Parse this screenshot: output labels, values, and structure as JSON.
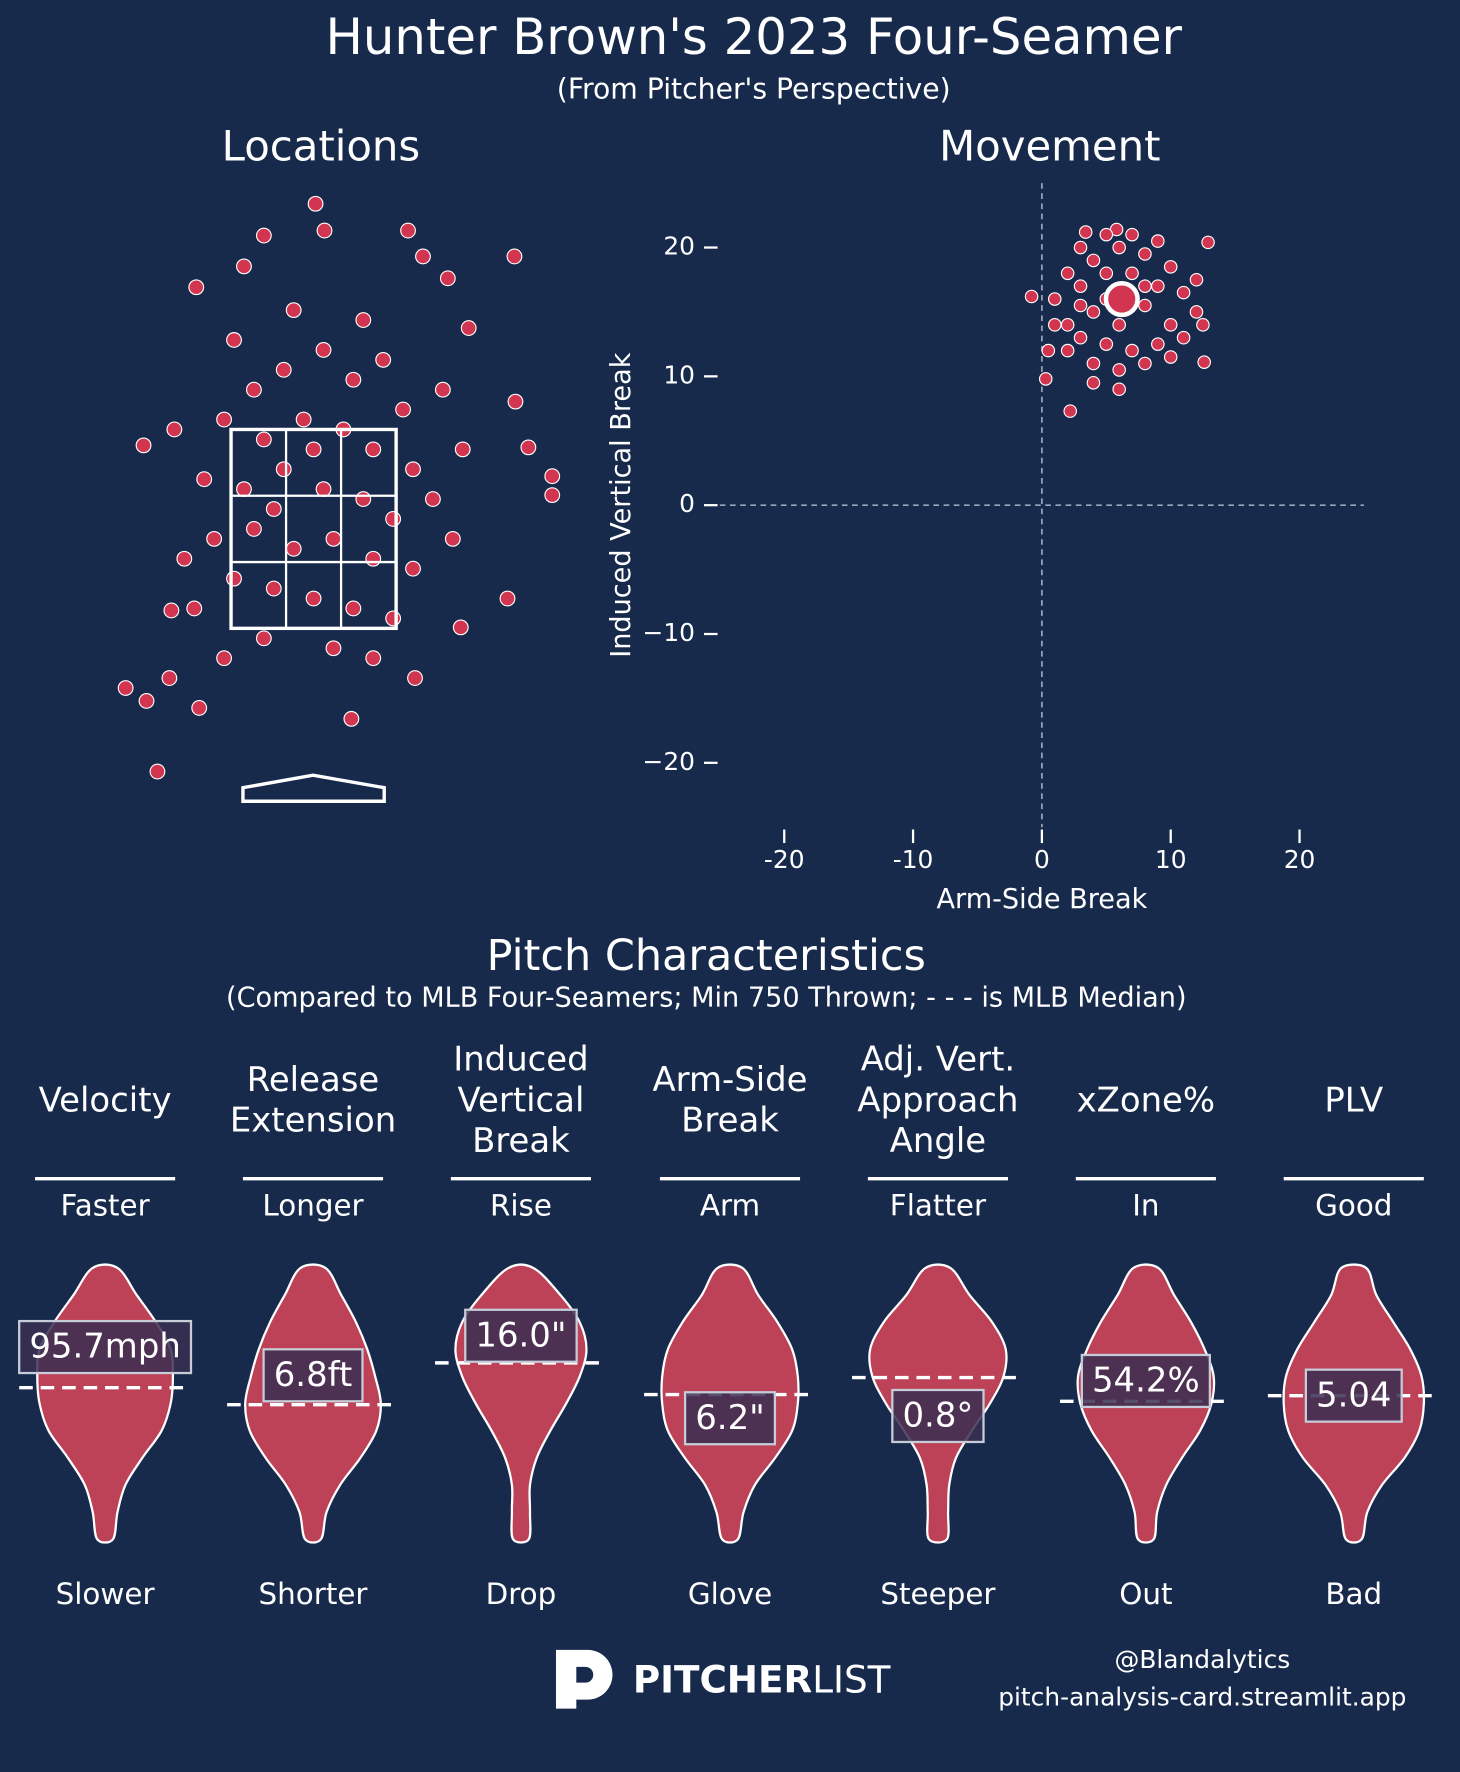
{
  "title": "Hunter Brown's 2023 Four-Seamer",
  "subtitle": "(From Pitcher's Perspective)",
  "chart_data": [
    {
      "type": "location",
      "title": "Locations",
      "color": "#d2354f",
      "xlim": [
        -2.5,
        2.5
      ],
      "ylim": [
        -0.5,
        6
      ],
      "zone": {
        "x": [
          -0.83,
          0.83
        ],
        "y": [
          1.5,
          3.5
        ]
      },
      "x": [
        0.02,
        -0.5,
        0.11,
        0.95,
        2.02,
        -1.18,
        -0.7,
        -1.71,
        2.16,
        2.4,
        2.4,
        -1.89,
        -1.68,
        -1.57,
        0.38,
        -1.15,
        1.02,
        1.95,
        1.48,
        1.35,
        1.1,
        2.03,
        -1.43,
        -1.45,
        1.56,
        -0.6,
        -0.3,
        0.1,
        0.4,
        0.7,
        0.9,
        -0.9,
        -0.5,
        -0.1,
        0.3,
        0.6,
        1.0,
        -1.1,
        -0.7,
        -0.3,
        0.1,
        0.5,
        0.8,
        1.2,
        -1.0,
        -0.6,
        -0.2,
        0.2,
        0.6,
        1.0,
        -0.8,
        -0.4,
        0.0,
        0.4,
        0.8,
        -1.2,
        -0.5,
        0.2,
        0.6,
        -0.9,
        -0.2,
        0.5,
        -0.8,
        1.3,
        1.5,
        -1.4,
        -1.3,
        1.4,
        0.0,
        -0.4
      ],
      "y": [
        5.77,
        5.45,
        5.5,
        5.5,
        5.24,
        4.93,
        5.14,
        3.34,
        3.32,
        3.03,
        2.84,
        0.9,
        0.77,
        0.06,
        0.59,
        0.7,
        1.0,
        1.8,
        1.51,
        5.02,
        5.24,
        3.78,
        1.68,
        1.0,
        4.52,
        3.9,
        4.1,
        4.3,
        4.0,
        4.2,
        3.7,
        3.6,
        3.4,
        3.6,
        3.5,
        3.3,
        3.1,
        3.0,
        2.9,
        3.1,
        2.9,
        2.8,
        2.6,
        2.8,
        2.4,
        2.5,
        2.3,
        2.4,
        2.2,
        2.1,
        2.0,
        1.9,
        1.8,
        1.7,
        1.6,
        1.7,
        1.4,
        1.3,
        1.2,
        1.2,
        4.7,
        4.6,
        4.4,
        3.9,
        3.3,
        3.5,
        2.2,
        2.4,
        3.3,
        2.7
      ]
    },
    {
      "type": "scatter",
      "title": "Movement",
      "x_label": "Arm-Side Break",
      "y_label": "Induced Vertical Break",
      "color": "#d2354f",
      "xlim": [
        -25,
        25
      ],
      "ylim": [
        -25,
        25
      ],
      "xticks": [
        -20,
        -10,
        0,
        10,
        20
      ],
      "yticks": [
        {
          "value": -20,
          "label": "−20"
        },
        {
          "value": -10,
          "label": "−10"
        },
        0,
        10,
        20
      ],
      "x": [
        3.4,
        5.8,
        12.9,
        -0.8,
        2.2,
        12.6,
        0.3,
        2,
        4,
        6,
        8,
        10,
        1,
        3,
        5,
        7,
        9,
        11,
        12,
        2,
        4,
        6,
        8,
        10,
        3,
        5,
        7,
        9,
        11,
        4,
        6,
        8,
        2,
        1,
        12,
        5,
        7,
        3,
        9,
        10,
        6,
        4,
        0.5,
        12.5,
        5,
        8,
        3
      ],
      "y": [
        21.2,
        21.4,
        20.4,
        16.2,
        7.3,
        11.1,
        9.8,
        18,
        19,
        20,
        19.5,
        18.5,
        16,
        17,
        18,
        18,
        17,
        16.5,
        15,
        14,
        15,
        14,
        15.5,
        14,
        13,
        12.5,
        12,
        12.5,
        13,
        11,
        10.5,
        11,
        12,
        14,
        17.5,
        21,
        21,
        20,
        20.5,
        11.5,
        9,
        9.5,
        12,
        14,
        16,
        17,
        15.5
      ],
      "mean": {
        "x": 6.2,
        "y": 16.0
      }
    }
  ],
  "characteristics": {
    "title": "Pitch Characteristics",
    "subtitle": "(Compared to MLB Four-Seamers; Min 750 Thrown; - - - is MLB Median)",
    "color": "#bd4157",
    "metrics": [
      {
        "name": [
          "Velocity"
        ],
        "high": "Faster",
        "low": "Slower",
        "value": 95.7,
        "value_label": "95.7mph"
      },
      {
        "name": [
          "Release",
          "Extension"
        ],
        "high": "Longer",
        "low": "Shorter",
        "value": 6.8,
        "value_label": "6.8ft"
      },
      {
        "name": [
          "Induced",
          "Vertical",
          "Break"
        ],
        "high": "Rise",
        "low": "Drop",
        "value": 16.0,
        "value_label": "16.0\""
      },
      {
        "name": [
          "Arm-Side",
          "Break"
        ],
        "high": "Arm",
        "low": "Glove",
        "value": 6.2,
        "value_label": "6.2\""
      },
      {
        "name": [
          "Adj. Vert.",
          "Approach",
          "Angle"
        ],
        "high": "Flatter",
        "low": "Steeper",
        "value": 0.8,
        "value_label": "0.8°"
      },
      {
        "name": [
          "xZone%"
        ],
        "high": "In",
        "low": "Out",
        "value": 54.2,
        "value_label": "54.2%"
      },
      {
        "name": [
          "PLV"
        ],
        "high": "Good",
        "low": "Bad",
        "value": 5.04,
        "value_label": "5.04"
      }
    ]
  },
  "footer": {
    "brand_bold": "PITCHER",
    "brand_light": "LIST",
    "handle": "@Blandalytics",
    "url": "pitch-analysis-card.streamlit.app"
  }
}
